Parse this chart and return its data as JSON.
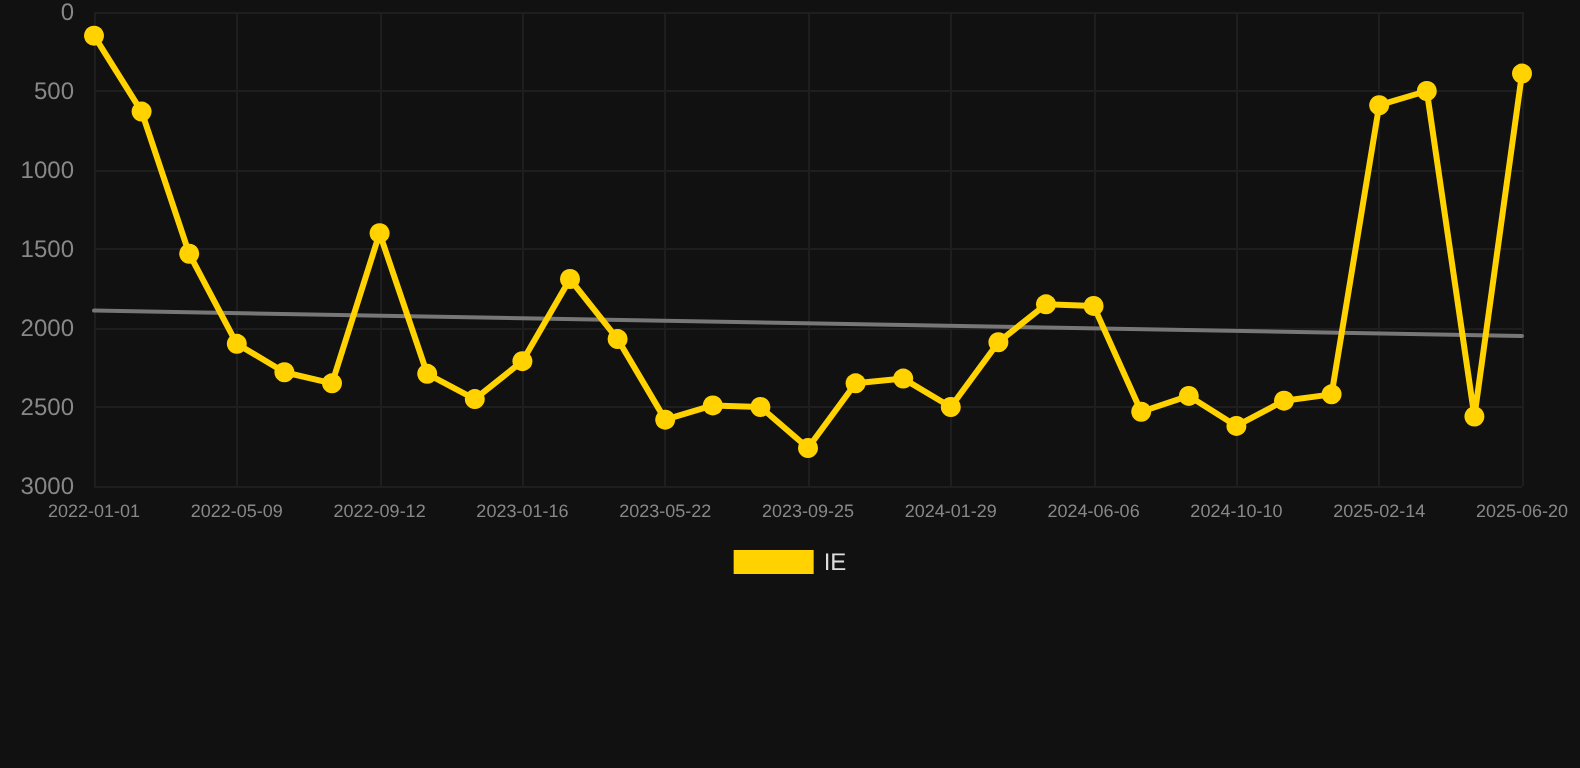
{
  "chart_data": {
    "type": "line",
    "categories": [
      "2022-01-01",
      null,
      null,
      "2022-05-09",
      null,
      null,
      "2022-09-12",
      null,
      null,
      "2023-01-16",
      null,
      null,
      "2023-05-22",
      null,
      null,
      "2023-09-25",
      null,
      null,
      "2024-01-29",
      null,
      null,
      "2024-06-06",
      null,
      null,
      "2024-10-10",
      null,
      null,
      "2025-02-14",
      null,
      null,
      "2025-06-20"
    ],
    "series": [
      {
        "name": "IE",
        "color": "#ffd200",
        "values": [
          150,
          630,
          1530,
          2100,
          2280,
          2350,
          1400,
          2290,
          2450,
          2210,
          1690,
          2070,
          2580,
          2490,
          2500,
          2760,
          2350,
          2320,
          2500,
          2090,
          1850,
          1860,
          2530,
          2430,
          2620,
          2460,
          2420,
          590,
          500,
          2560,
          390
        ]
      },
      {
        "type": "line",
        "color": "#777777",
        "marker": "none",
        "values": [
          1890,
          null,
          null,
          null,
          null,
          null,
          null,
          null,
          null,
          null,
          null,
          null,
          null,
          null,
          null,
          null,
          null,
          null,
          null,
          null,
          null,
          null,
          null,
          null,
          null,
          null,
          null,
          null,
          null,
          null,
          2050
        ]
      }
    ],
    "ylim": [
      3000,
      0
    ],
    "yticks": [
      0,
      500,
      1000,
      1500,
      2000,
      2500,
      3000
    ],
    "grid": true,
    "legend": "bottom",
    "marker": "circle",
    "line_style": "solid"
  }
}
